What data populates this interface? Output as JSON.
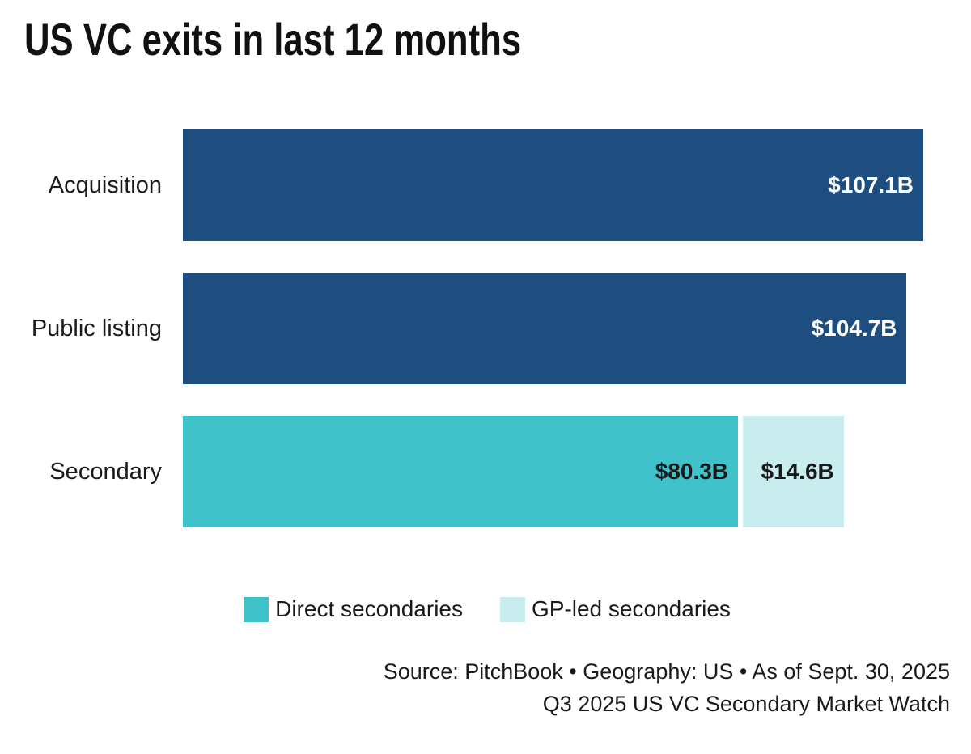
{
  "chart_data": {
    "type": "bar",
    "orientation": "horizontal",
    "title": "US VC exits in last 12 months",
    "xlim": [
      0,
      107.1
    ],
    "grid": false,
    "legend_position": "bottom-center",
    "categories": [
      "Acquisition",
      "Public listing",
      "Secondary"
    ],
    "rows": [
      {
        "category": "Acquisition",
        "segments": [
          {
            "value": 107.1,
            "label": "$107.1B",
            "color": "#1E4E80",
            "label_color": "#FFFFFF"
          }
        ]
      },
      {
        "category": "Public listing",
        "segments": [
          {
            "value": 104.7,
            "label": "$104.7B",
            "color": "#1E4E80",
            "label_color": "#FFFFFF"
          }
        ]
      },
      {
        "category": "Secondary",
        "segments": [
          {
            "series": "Direct secondaries",
            "value": 80.3,
            "label": "$80.3B",
            "color": "#3FC2C9",
            "label_color": "#1A1A1A"
          },
          {
            "series": "GP-led secondaries",
            "value": 14.6,
            "label": "$14.6B",
            "color": "#C9ECEE",
            "label_color": "#1A1A1A"
          }
        ]
      }
    ],
    "legend": [
      {
        "label": "Direct secondaries",
        "color": "#3FC2C9"
      },
      {
        "label": "GP-led secondaries",
        "color": "#C9ECEE"
      }
    ]
  },
  "footer": {
    "source_line": "Source: PitchBook • Geography: US • As of Sept. 30, 2025",
    "report_line": "Q3 2025 US VC Secondary Market Watch"
  }
}
